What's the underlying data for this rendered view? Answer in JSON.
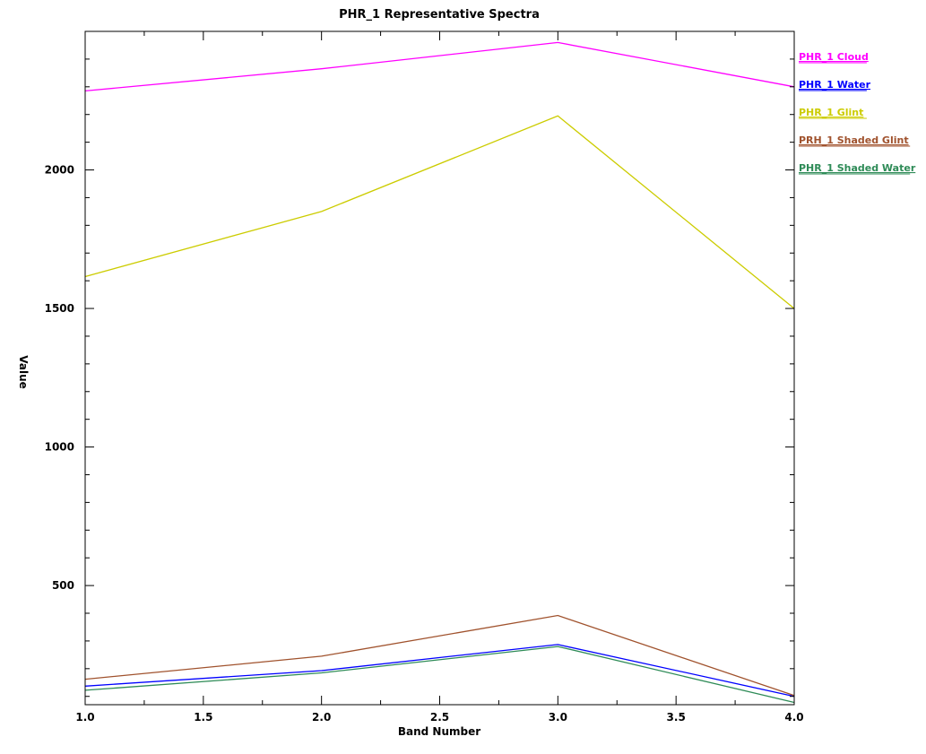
{
  "chart_data": {
    "type": "line",
    "title": "PHR_1 Representative Spectra",
    "xlabel": "Band Number",
    "ylabel": "Value",
    "xlim": [
      1.0,
      4.0
    ],
    "ylim": [
      70,
      2500
    ],
    "x": [
      1,
      2,
      3,
      4
    ],
    "x_ticks": [
      1.0,
      1.5,
      2.0,
      2.5,
      3.0,
      3.5,
      4.0
    ],
    "x_tick_labels": [
      "1.0",
      "1.5",
      "2.0",
      "2.5",
      "3.0",
      "3.5",
      "4.0"
    ],
    "y_ticks": [
      500,
      1000,
      1500,
      2000
    ],
    "y_tick_labels": [
      "500",
      "1000",
      "1500",
      "2000"
    ],
    "grid": false,
    "legend_position": "right",
    "series": [
      {
        "name": "PHR_1 Cloud",
        "color": "#ff00ff",
        "values": [
          2285,
          2365,
          2460,
          2300
        ]
      },
      {
        "name": "PHR_1 Water",
        "color": "#0000ff",
        "values": [
          137,
          193,
          287,
          100
        ]
      },
      {
        "name": "PHR_1 Glint",
        "color": "#cccc00",
        "values": [
          1615,
          1850,
          2195,
          1500
        ]
      },
      {
        "name": "PRH_1 Shaded Glint",
        "color": "#a0522d",
        "values": [
          162,
          245,
          392,
          103
        ]
      },
      {
        "name": "PHR_1 Shaded Water",
        "color": "#2e8b57",
        "values": [
          122,
          185,
          280,
          78
        ]
      }
    ]
  }
}
